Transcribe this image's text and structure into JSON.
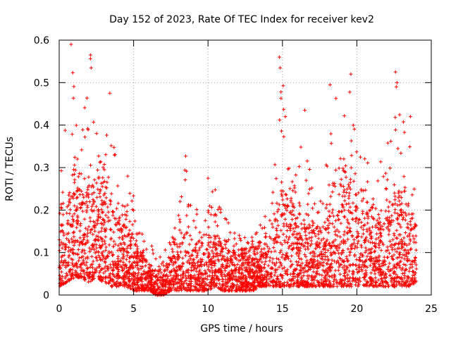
{
  "chart_data": {
    "type": "scatter",
    "title": "Day 152 of 2023, Rate Of TEC Index for receiver kev2",
    "xlabel": "GPS time / hours",
    "ylabel": "ROTI / TECUs",
    "xlim": [
      0,
      25
    ],
    "ylim": [
      0,
      0.6
    ],
    "xticks": [
      "0",
      "5",
      "10",
      "15",
      "20",
      "25"
    ],
    "yticks": [
      "0",
      "0.1",
      "0.2",
      "0.3",
      "0.4",
      "0.5",
      "0.6"
    ],
    "grid": true,
    "marker": "+",
    "color": "#ff0000",
    "x_data_range": [
      0,
      24
    ],
    "envelope": {
      "x": [
        0,
        0.5,
        1,
        1.5,
        2,
        2.5,
        3,
        3.5,
        4,
        4.5,
        5,
        5.5,
        6,
        6.5,
        7,
        7.5,
        8,
        8.5,
        9,
        9.5,
        10,
        10.5,
        11,
        11.5,
        12,
        12.5,
        13,
        13.5,
        14,
        14.5,
        15,
        15.5,
        16,
        16.5,
        17,
        17.5,
        18,
        18.5,
        19,
        19.5,
        20,
        20.5,
        21,
        21.5,
        22,
        22.5,
        23,
        23.5,
        24
      ],
      "typical_max": [
        0.2,
        0.26,
        0.3,
        0.28,
        0.27,
        0.24,
        0.25,
        0.22,
        0.18,
        0.16,
        0.14,
        0.1,
        0.08,
        0.05,
        0.06,
        0.1,
        0.12,
        0.16,
        0.12,
        0.13,
        0.15,
        0.14,
        0.12,
        0.1,
        0.1,
        0.1,
        0.11,
        0.12,
        0.12,
        0.18,
        0.25,
        0.22,
        0.2,
        0.18,
        0.16,
        0.15,
        0.18,
        0.22,
        0.24,
        0.26,
        0.24,
        0.2,
        0.2,
        0.18,
        0.2,
        0.24,
        0.22,
        0.2,
        0.16
      ],
      "peak_max": [
        0.36,
        0.42,
        0.59,
        0.4,
        0.56,
        0.4,
        0.35,
        0.47,
        0.28,
        0.2,
        0.28,
        0.15,
        0.13,
        0.1,
        0.12,
        0.16,
        0.2,
        0.33,
        0.22,
        0.2,
        0.27,
        0.25,
        0.2,
        0.17,
        0.15,
        0.14,
        0.17,
        0.2,
        0.2,
        0.33,
        0.56,
        0.3,
        0.29,
        0.43,
        0.25,
        0.22,
        0.35,
        0.49,
        0.4,
        0.52,
        0.35,
        0.37,
        0.3,
        0.36,
        0.35,
        0.52,
        0.42,
        0.38,
        0.2
      ],
      "typical_min": [
        0.02,
        0.03,
        0.04,
        0.04,
        0.03,
        0.04,
        0.03,
        0.02,
        0.02,
        0.02,
        0.01,
        0.01,
        0.01,
        0.0,
        0.0,
        0.01,
        0.01,
        0.01,
        0.01,
        0.01,
        0.01,
        0.02,
        0.01,
        0.01,
        0.01,
        0.01,
        0.01,
        0.02,
        0.02,
        0.02,
        0.02,
        0.02,
        0.02,
        0.02,
        0.02,
        0.02,
        0.02,
        0.02,
        0.02,
        0.02,
        0.02,
        0.02,
        0.02,
        0.02,
        0.02,
        0.02,
        0.02,
        0.02,
        0.03
      ]
    },
    "notable_points": [
      {
        "x": 0.8,
        "y": 0.59
      },
      {
        "x": 2.1,
        "y": 0.565
      },
      {
        "x": 2.1,
        "y": 0.556
      },
      {
        "x": 2.15,
        "y": 0.535
      },
      {
        "x": 3.4,
        "y": 0.475
      },
      {
        "x": 14.8,
        "y": 0.56
      },
      {
        "x": 14.85,
        "y": 0.535
      },
      {
        "x": 14.9,
        "y": 0.478
      },
      {
        "x": 16.5,
        "y": 0.435
      },
      {
        "x": 18.2,
        "y": 0.495
      },
      {
        "x": 19.6,
        "y": 0.52
      },
      {
        "x": 22.6,
        "y": 0.525
      },
      {
        "x": 22.7,
        "y": 0.5
      },
      {
        "x": 22.65,
        "y": 0.49
      },
      {
        "x": 8.5,
        "y": 0.327
      },
      {
        "x": 10.0,
        "y": 0.275
      },
      {
        "x": 4.6,
        "y": 0.28
      },
      {
        "x": 23.6,
        "y": 0.42
      }
    ]
  }
}
